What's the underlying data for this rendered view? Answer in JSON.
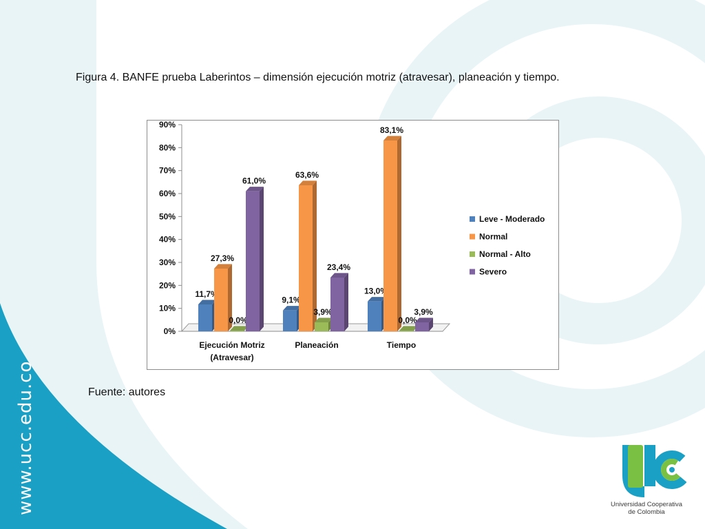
{
  "slide": {
    "caption": "Figura 4. BANFE prueba Laberintos – dimensión ejecución motriz (atravesar), planeación y tiempo.",
    "source_note": "Fuente: autores",
    "side_url": "www.ucc.edu.co",
    "logo_line1": "Universidad Cooperativa",
    "logo_line2": "de Colombia"
  },
  "colors": {
    "teal": "#1ba0c5",
    "teal_light": "#e9f4f7",
    "logo_green": "#7ac143",
    "logo_teal": "#1ba0c5"
  },
  "chart_data": {
    "type": "bar",
    "title": "",
    "xlabel": "",
    "ylabel": "",
    "ylim": [
      0,
      90
    ],
    "y_ticks": [
      "0%",
      "10%",
      "20%",
      "30%",
      "40%",
      "50%",
      "60%",
      "70%",
      "80%",
      "90%"
    ],
    "categories": [
      [
        "Ejecución Motriz",
        "(Atravesar)"
      ],
      [
        "Planeación"
      ],
      [
        "Tiempo"
      ]
    ],
    "series": [
      {
        "name": "Leve - Moderado",
        "color": "#4f81bd",
        "values": [
          11.7,
          9.1,
          13.0
        ],
        "labels": [
          "11,7%",
          "9,1%",
          "13,0%"
        ]
      },
      {
        "name": "Normal",
        "color": "#f79646",
        "values": [
          27.3,
          63.6,
          83.1
        ],
        "labels": [
          "27,3%",
          "63,6%",
          "83,1%"
        ]
      },
      {
        "name": "Normal - Alto",
        "color": "#9bbb59",
        "values": [
          0.0,
          3.9,
          0.0
        ],
        "labels": [
          "0,0%",
          "3,9%",
          "0,0%"
        ]
      },
      {
        "name": "Severo",
        "color": "#8064a2",
        "values": [
          61.0,
          23.4,
          3.9
        ],
        "labels": [
          "61,0%",
          "23,4%",
          "3,9%"
        ]
      }
    ],
    "legend_position": "right",
    "grid": false,
    "style": "3d-column"
  }
}
